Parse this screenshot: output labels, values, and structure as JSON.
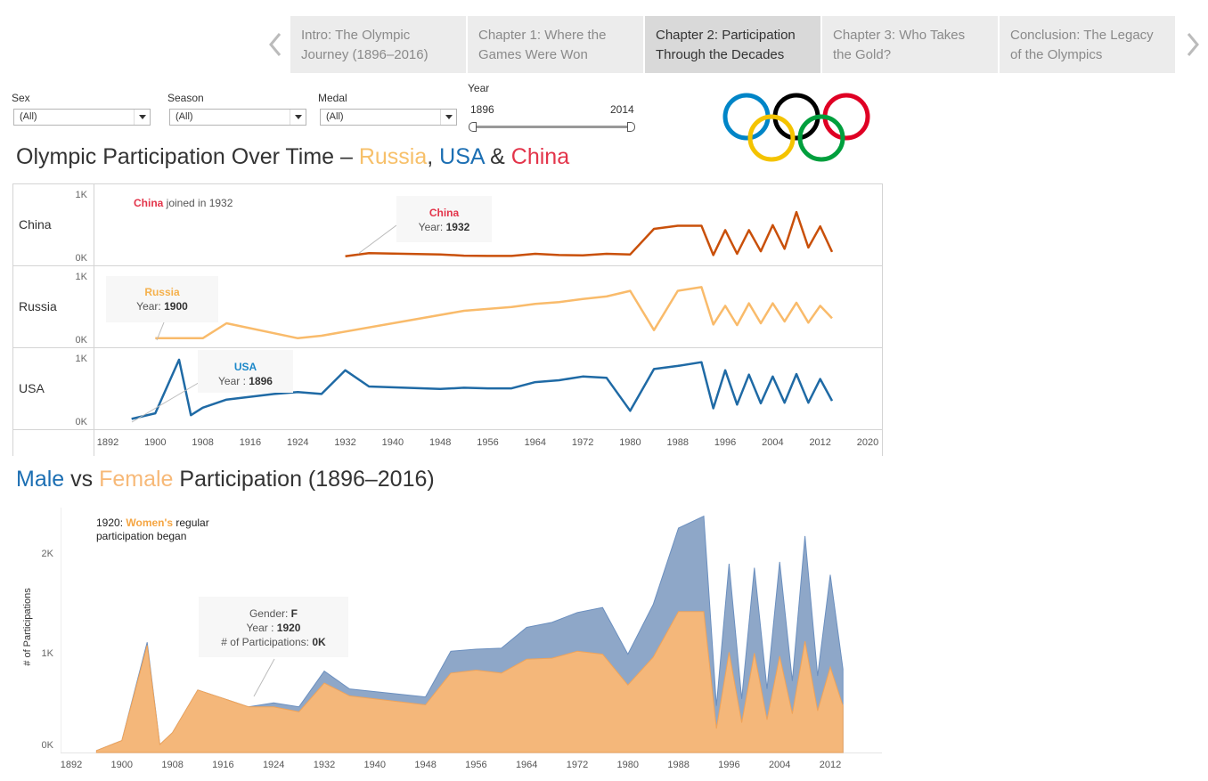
{
  "story_nav": {
    "tabs": [
      {
        "label": "Intro: The Olympic Journey (1896–2016)",
        "active": false
      },
      {
        "label": "Chapter 1: Where the Games Were Won",
        "active": false
      },
      {
        "label": "Chapter 2: Participation Through the Decades",
        "active": true
      },
      {
        "label": "Chapter 3: Who Takes the Gold?",
        "active": false
      },
      {
        "label": "Conclusion: The Legacy of the Olympics",
        "active": false
      }
    ]
  },
  "filters": {
    "sex": {
      "label": "Sex",
      "value": "(All)"
    },
    "season": {
      "label": "Season",
      "value": "(All)"
    },
    "medal": {
      "label": "Medal",
      "value": "(All)"
    },
    "year": {
      "label": "Year",
      "min": "1896",
      "max": "2014"
    }
  },
  "logo": {
    "colors": [
      "#0085c7",
      "#000000",
      "#df0024",
      "#f4c300",
      "#009f3d"
    ]
  },
  "colors": {
    "china": "#c9500a",
    "russia": "#f9bb6b",
    "usa": "#1f6aa5",
    "male": "#8ea7c8",
    "female": "#f4b77a",
    "china_text": "#e3344a",
    "russia_text": "#f5b14c",
    "usa_text": "#1c6fb3",
    "male_text": "#1c6fb3",
    "female_text": "#f7b978"
  },
  "chart1": {
    "title_prefix": "Olympic Participation Over Time – ",
    "title_russia": "Russia",
    "title_sep1": ", ",
    "title_usa": "USA",
    "title_sep2": " & ",
    "title_china": "China",
    "rows": [
      "China",
      "Russia",
      "USA"
    ],
    "ytick_top": "1K",
    "ytick_bottom": "0K",
    "annotation_china": "China",
    "annotation_rest": " joined in 1932",
    "tooltips": {
      "china": {
        "name": "China",
        "label": "Year:",
        "value": "1932"
      },
      "russia": {
        "name": "Russia",
        "label": "Year:",
        "value": "1900"
      },
      "usa": {
        "name": "USA",
        "label": "Year :",
        "value": "1896"
      }
    },
    "xticks": [
      "1892",
      "1900",
      "1908",
      "1916",
      "1924",
      "1932",
      "1940",
      "1948",
      "1956",
      "1964",
      "1972",
      "1980",
      "1988",
      "1996",
      "2004",
      "2012",
      "2020"
    ]
  },
  "chart2": {
    "title_male": "Male",
    "title_vs": " vs ",
    "title_female": "Female",
    "title_rest": " Participation (1896–2016)",
    "ylabel": "# of Participations",
    "yticks": [
      "2K",
      "1K",
      "0K"
    ],
    "annotation_year": "1920: ",
    "annotation_women": "Women's",
    "annotation_rest1": " regular",
    "annotation_rest2": "participation began",
    "tooltip": {
      "gender_label": "Gender:",
      "gender_value": "F",
      "year_label": "Year :",
      "year_value": "1920",
      "count_label": "# of Participations:",
      "count_value": "0K"
    },
    "xticks": [
      "1892",
      "1900",
      "1908",
      "1916",
      "1924",
      "1932",
      "1940",
      "1948",
      "1956",
      "1964",
      "1972",
      "1980",
      "1988",
      "1996",
      "2004",
      "2012"
    ]
  },
  "chart_data": [
    {
      "type": "line",
      "title": "Olympic Participation Over Time – Russia, USA & China",
      "xlim": [
        1890,
        2021
      ],
      "ylim": [
        0,
        1000
      ],
      "series": [
        {
          "name": "China",
          "x": [
            1932,
            1936,
            1948,
            1952,
            1956,
            1960,
            1964,
            1968,
            1972,
            1976,
            1980,
            1984,
            1988,
            1992,
            1994,
            1996,
            1998,
            2000,
            2002,
            2004,
            2006,
            2008,
            2010,
            2012,
            2014
          ],
          "values": [
            60,
            110,
            90,
            70,
            65,
            65,
            100,
            80,
            75,
            100,
            90,
            500,
            550,
            550,
            80,
            480,
            100,
            480,
            140,
            560,
            180,
            770,
            200,
            540,
            130
          ]
        },
        {
          "name": "Russia",
          "x": [
            1900,
            1908,
            1912,
            1924,
            1928,
            1952,
            1956,
            1960,
            1964,
            1968,
            1972,
            1976,
            1980,
            1984,
            1988,
            1992,
            1994,
            1996,
            1998,
            2000,
            2002,
            2004,
            2006,
            2008,
            2010,
            2012,
            2014
          ],
          "values": [
            60,
            60,
            300,
            60,
            100,
            500,
            530,
            560,
            610,
            640,
            690,
            730,
            820,
            190,
            820,
            880,
            280,
            580,
            270,
            620,
            300,
            620,
            330,
            630,
            310,
            580,
            380
          ]
        },
        {
          "name": "USA",
          "x": [
            1896,
            1900,
            1904,
            1906,
            1908,
            1912,
            1920,
            1924,
            1928,
            1932,
            1936,
            1948,
            1952,
            1956,
            1960,
            1964,
            1968,
            1972,
            1976,
            1980,
            1984,
            1988,
            1992,
            1994,
            1996,
            1998,
            2000,
            2002,
            2004,
            2006,
            2008,
            2010,
            2012,
            2014
          ],
          "values": [
            80,
            170,
            1030,
            140,
            260,
            390,
            480,
            510,
            480,
            860,
            600,
            560,
            580,
            570,
            570,
            670,
            700,
            760,
            740,
            210,
            880,
            930,
            990,
            250,
            860,
            310,
            790,
            330,
            760,
            340,
            800,
            340,
            720,
            370
          ]
        }
      ]
    },
    {
      "type": "area",
      "title": "Male vs Female Participation (1896–2016)",
      "ylabel": "# of Participations",
      "xlim": [
        1890,
        2018
      ],
      "ylim": [
        0,
        2600
      ],
      "series": [
        {
          "name": "Male",
          "x": [
            1896,
            1900,
            1904,
            1906,
            1908,
            1912,
            1920,
            1924,
            1928,
            1932,
            1936,
            1948,
            1952,
            1956,
            1960,
            1964,
            1968,
            1972,
            1976,
            1980,
            1984,
            1988,
            1992,
            1994,
            1996,
            1998,
            2000,
            2002,
            2004,
            2006,
            2008,
            2010,
            2012,
            2014
          ],
          "values": [
            20,
            120,
            1110,
            80,
            200,
            630,
            460,
            500,
            460,
            820,
            640,
            560,
            1020,
            1040,
            1050,
            1260,
            1310,
            1410,
            1460,
            990,
            1490,
            2260,
            2380,
            470,
            1900,
            540,
            1860,
            640,
            1920,
            720,
            2180,
            770,
            1790,
            840
          ]
        },
        {
          "name": "Female",
          "x": [
            1896,
            1900,
            1904,
            1906,
            1908,
            1912,
            1920,
            1924,
            1928,
            1932,
            1936,
            1948,
            1952,
            1956,
            1960,
            1964,
            1968,
            1972,
            1976,
            1980,
            1984,
            1988,
            1992,
            1994,
            1996,
            1998,
            2000,
            2002,
            2004,
            2006,
            2008,
            2010,
            2012,
            2014
          ],
          "values": [
            20,
            120,
            1080,
            80,
            200,
            630,
            460,
            460,
            410,
            700,
            570,
            480,
            800,
            830,
            800,
            940,
            950,
            1020,
            990,
            680,
            960,
            1420,
            1420,
            240,
            1010,
            300,
            1000,
            330,
            970,
            390,
            1120,
            420,
            860,
            470
          ]
        }
      ]
    }
  ]
}
